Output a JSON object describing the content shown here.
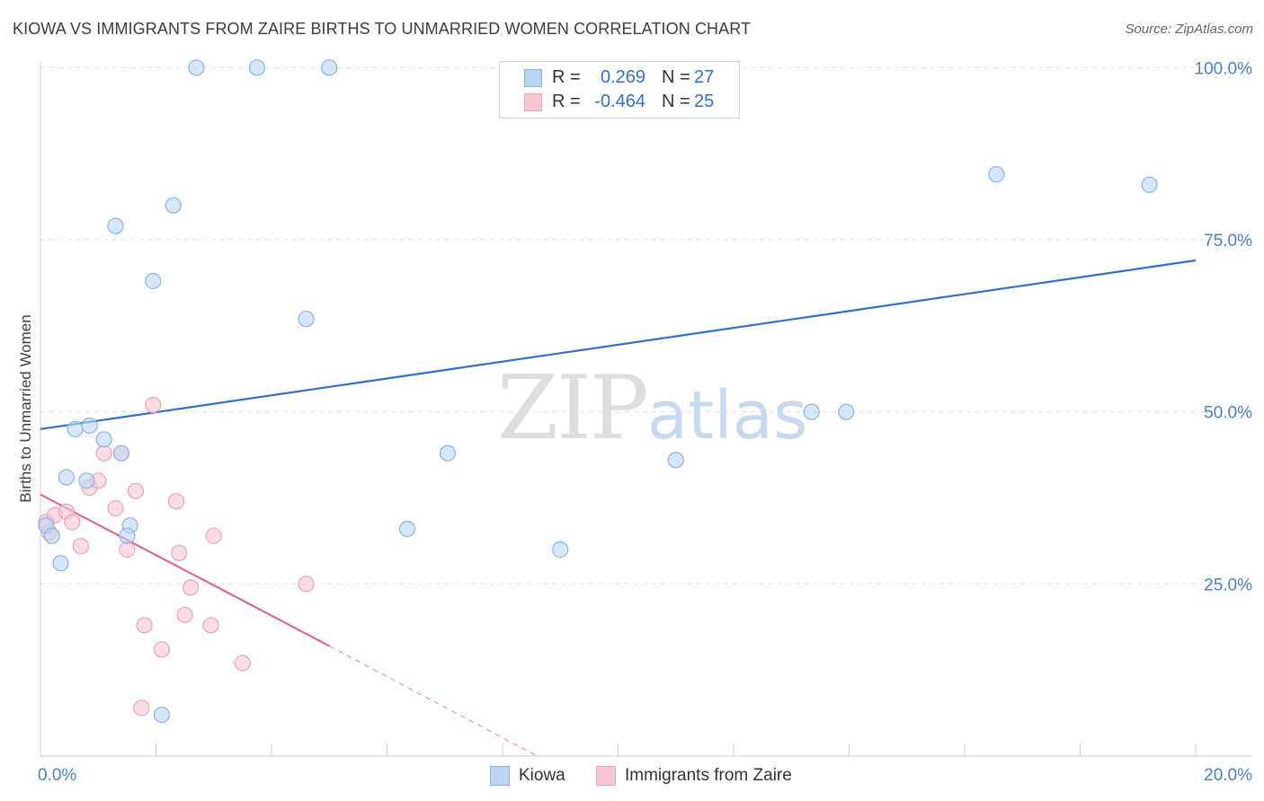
{
  "title": "KIOWA VS IMMIGRANTS FROM ZAIRE BIRTHS TO UNMARRIED WOMEN CORRELATION CHART",
  "source": "Source: ZipAtlas.com",
  "watermark": {
    "zip": "ZIP",
    "atlas": "atlas"
  },
  "legend": {
    "rows": [
      {
        "label": "R =",
        "r": "0.269",
        "n_label": "N =",
        "n": "27"
      },
      {
        "label": "R =",
        "r": "-0.464",
        "n_label": "N =",
        "n": "25"
      }
    ]
  },
  "bottom_legend": [
    "Kiowa",
    "Immigrants from Zaire"
  ],
  "colors": {
    "kiowa_fill": "#bdd5f5",
    "kiowa_stroke": "#8ab2e6",
    "kiowa_line": "#2f6fd3",
    "zaire_fill": "#f7c6d4",
    "zaire_stroke": "#eda0b8",
    "zaire_line": "#e0649a",
    "tick": "#4a7fd0",
    "grid": "#dedede"
  },
  "chart_data": {
    "type": "scatter",
    "title": "KIOWA VS IMMIGRANTS FROM ZAIRE BIRTHS TO UNMARRIED WOMEN CORRELATION CHART",
    "xlabel": "",
    "ylabel": "Births to Unmarried Women",
    "xlim": [
      0,
      20
    ],
    "ylim": [
      0,
      102
    ],
    "x_tick_labels": [
      "0.0%",
      "20.0%"
    ],
    "y_ticks": [
      25,
      50,
      75,
      100
    ],
    "y_tick_labels": [
      "25.0%",
      "50.0%",
      "75.0%",
      "100.0%"
    ],
    "grid": true,
    "series": [
      {
        "name": "Kiowa",
        "r": 0.269,
        "n": 27,
        "points": [
          [
            0.1,
            33.5
          ],
          [
            0.2,
            32
          ],
          [
            0.35,
            28
          ],
          [
            0.45,
            40.5
          ],
          [
            0.6,
            47.5
          ],
          [
            0.85,
            48
          ],
          [
            1.1,
            46
          ],
          [
            0.8,
            40
          ],
          [
            1.4,
            44
          ],
          [
            1.55,
            33.5
          ],
          [
            1.5,
            32
          ],
          [
            1.3,
            77
          ],
          [
            1.95,
            69
          ],
          [
            2.3,
            80
          ],
          [
            2.7,
            100
          ],
          [
            3.75,
            100
          ],
          [
            5.0,
            100
          ],
          [
            4.6,
            63.5
          ],
          [
            2.1,
            6
          ],
          [
            6.35,
            33
          ],
          [
            7.05,
            44
          ],
          [
            9.0,
            30
          ],
          [
            11.0,
            43
          ],
          [
            13.35,
            50
          ],
          [
            13.95,
            50
          ],
          [
            16.55,
            84.5
          ],
          [
            19.2,
            83
          ]
        ],
        "trend": {
          "x": [
            0,
            20
          ],
          "y": [
            47.5,
            72
          ]
        }
      },
      {
        "name": "Immigrants from Zaire",
        "r": -0.464,
        "n": 25,
        "points": [
          [
            0.1,
            34
          ],
          [
            0.15,
            32.5
          ],
          [
            0.25,
            35
          ],
          [
            0.45,
            35.5
          ],
          [
            0.55,
            34
          ],
          [
            0.7,
            30.5
          ],
          [
            0.85,
            39
          ],
          [
            1.0,
            40
          ],
          [
            1.1,
            44
          ],
          [
            1.3,
            36
          ],
          [
            1.4,
            44
          ],
          [
            1.65,
            38.5
          ],
          [
            1.5,
            30
          ],
          [
            1.95,
            51
          ],
          [
            2.1,
            15.5
          ],
          [
            2.35,
            37
          ],
          [
            2.4,
            29.5
          ],
          [
            2.5,
            20.5
          ],
          [
            2.6,
            24.5
          ],
          [
            2.95,
            19
          ],
          [
            3.0,
            32
          ],
          [
            3.5,
            13.5
          ],
          [
            4.6,
            25
          ],
          [
            1.8,
            19
          ],
          [
            1.75,
            7
          ]
        ],
        "trend": {
          "x": [
            0,
            5.0
          ],
          "y": [
            38,
            16
          ]
        },
        "trend_extension": {
          "x": [
            5.0,
            8.6
          ],
          "y": [
            16,
            0
          ]
        }
      }
    ]
  }
}
